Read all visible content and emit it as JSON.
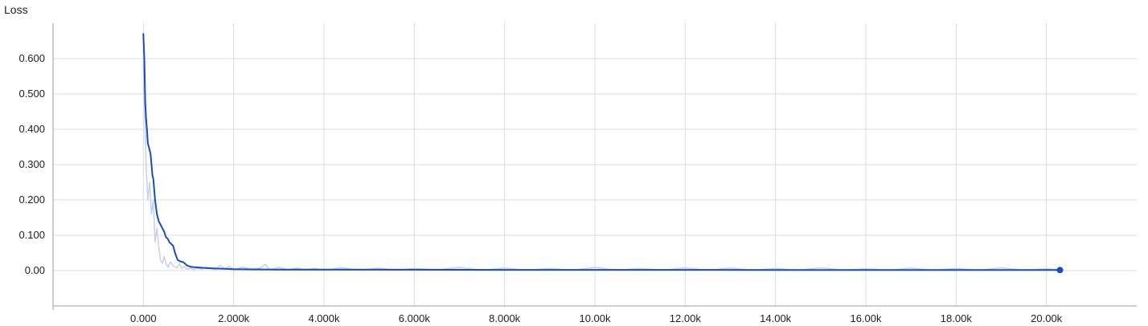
{
  "chart_data": {
    "type": "line",
    "title": "Loss",
    "xlabel": "",
    "ylabel": "",
    "xlim": [
      -2000,
      22000
    ],
    "ylim": [
      -0.1,
      0.7
    ],
    "x_ticks": [
      0,
      2000,
      4000,
      6000,
      8000,
      10000,
      12000,
      14000,
      16000,
      18000,
      20000
    ],
    "x_tick_labels": [
      "0.000",
      "2.000k",
      "4.000k",
      "6.000k",
      "8.000k",
      "10.00k",
      "12.00k",
      "14.00k",
      "16.00k",
      "18.00k",
      "20.00k"
    ],
    "y_ticks": [
      0,
      0.1,
      0.2,
      0.3,
      0.4,
      0.5,
      0.6
    ],
    "y_tick_labels": [
      "0.00",
      "0.100",
      "0.200",
      "0.300",
      "0.400",
      "0.500",
      "0.600"
    ],
    "grid": true,
    "series": [
      {
        "role": "raw",
        "color": "#c5d0ea",
        "x": [
          0,
          30,
          60,
          100,
          140,
          180,
          220,
          260,
          300,
          340,
          380,
          420,
          460,
          500,
          550,
          600,
          650,
          700,
          750,
          800,
          850,
          900,
          950,
          1000,
          1050,
          1100,
          1200,
          1300,
          1400,
          1500,
          1600,
          1700,
          1800,
          1900,
          2000,
          2200,
          2400,
          2600,
          2700,
          2800,
          3000,
          3200,
          3400,
          3600,
          3800,
          4000,
          4400,
          4800,
          5200,
          5600,
          6000,
          6500,
          7000,
          7500,
          8000,
          8500,
          9000,
          9500,
          10000,
          10500,
          11000,
          11500,
          12000,
          12500,
          13000,
          13500,
          14000,
          14500,
          15000,
          15500,
          16000,
          16500,
          17000,
          17500,
          18000,
          18500,
          19000,
          19500,
          20000,
          20300
        ],
        "y": [
          0.58,
          0.45,
          0.3,
          0.2,
          0.25,
          0.16,
          0.2,
          0.08,
          0.12,
          0.07,
          0.03,
          0.02,
          0.04,
          0.02,
          0.01,
          0.025,
          0.015,
          0.01,
          0.008,
          0.02,
          0.006,
          0.012,
          0.005,
          0.004,
          0.008,
          0.003,
          0.006,
          0.004,
          0.01,
          0.005,
          0.003,
          0.015,
          0.004,
          0.012,
          0.002,
          0.01,
          0.002,
          0.008,
          0.018,
          0.002,
          0.009,
          0.002,
          0.007,
          0.002,
          0.006,
          0.001,
          0.008,
          0.001,
          0.007,
          0.001,
          0.006,
          0.002,
          0.009,
          0.001,
          0.007,
          0.001,
          0.006,
          0.001,
          0.009,
          0.001,
          0.006,
          0.001,
          0.008,
          0.001,
          0.007,
          0.001,
          0.006,
          0.001,
          0.008,
          0.001,
          0.005,
          0.001,
          0.007,
          0.001,
          0.006,
          0.001,
          0.008,
          0.001,
          0.005,
          0.002
        ]
      },
      {
        "role": "smoothed",
        "color": "#1a4dbc",
        "x": [
          0,
          20,
          40,
          60,
          80,
          100,
          120,
          160,
          200,
          220,
          260,
          300,
          340,
          380,
          420,
          460,
          500,
          540,
          580,
          620,
          660,
          700,
          760,
          800,
          840,
          880,
          920,
          960,
          1000,
          1050,
          1100,
          1200,
          1400,
          1600,
          1800,
          2000,
          2500,
          3000,
          4000,
          6000,
          8000,
          10000,
          12000,
          14000,
          16000,
          18000,
          20000,
          20300
        ],
        "y": [
          0.67,
          0.6,
          0.48,
          0.43,
          0.4,
          0.36,
          0.35,
          0.33,
          0.27,
          0.26,
          0.2,
          0.16,
          0.14,
          0.13,
          0.12,
          0.11,
          0.095,
          0.09,
          0.08,
          0.075,
          0.07,
          0.05,
          0.03,
          0.027,
          0.025,
          0.024,
          0.02,
          0.015,
          0.013,
          0.011,
          0.01,
          0.009,
          0.007,
          0.006,
          0.005,
          0.004,
          0.0035,
          0.003,
          0.003,
          0.0025,
          0.002,
          0.002,
          0.002,
          0.0015,
          0.0015,
          0.0015,
          0.0015,
          0.0015
        ]
      }
    ]
  }
}
